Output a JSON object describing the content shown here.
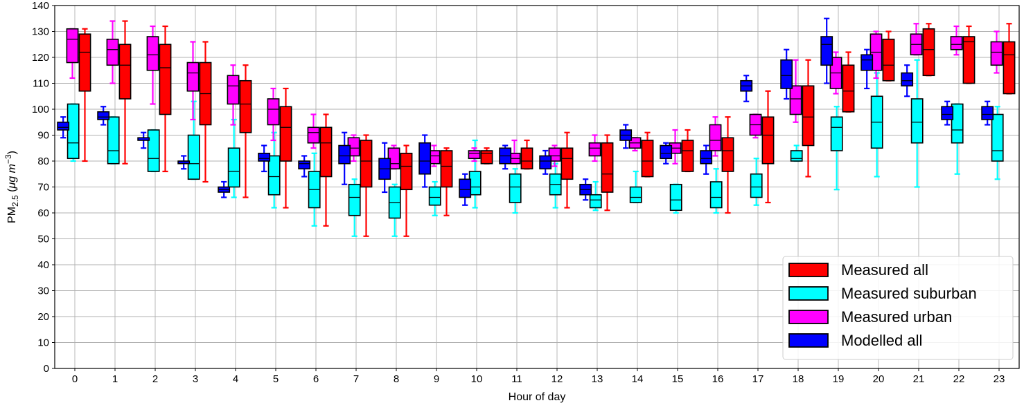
{
  "chart_data": {
    "type": "box",
    "xlabel": "Hour of day",
    "ylabel_main": "PM",
    "ylabel_sub": "2.5",
    "ylabel_unit_open": " (",
    "ylabel_unit_mu": "μg m",
    "ylabel_unit_exp": "−3",
    "ylabel_unit_close": ")",
    "ylim": [
      0,
      140
    ],
    "yticks": [
      0,
      10,
      20,
      30,
      40,
      50,
      60,
      70,
      80,
      90,
      100,
      110,
      120,
      130,
      140
    ],
    "categories": [
      "0",
      "1",
      "2",
      "3",
      "4",
      "5",
      "6",
      "7",
      "8",
      "9",
      "10",
      "11",
      "12",
      "13",
      "14",
      "15",
      "16",
      "17",
      "18",
      "19",
      "20",
      "21",
      "22",
      "23"
    ],
    "grid": true,
    "legend_position": "lower-right",
    "series": [
      {
        "name": "Measured all",
        "color": "#ff0000",
        "offset": 0.25,
        "stats": [
          [
            80,
            107,
            122,
            129,
            131
          ],
          [
            79,
            104,
            117,
            125,
            134
          ],
          [
            76,
            98,
            116,
            125,
            132
          ],
          [
            72,
            94,
            106,
            118,
            126
          ],
          [
            66,
            91,
            102,
            111,
            117
          ],
          [
            62,
            80,
            93,
            101,
            108
          ],
          [
            55,
            74,
            87,
            93,
            98
          ],
          [
            51,
            70,
            80,
            88,
            90
          ],
          [
            51,
            69,
            78,
            83,
            86
          ],
          [
            59,
            70,
            78,
            84,
            85
          ],
          [
            79,
            79,
            83,
            84,
            85
          ],
          [
            77,
            77,
            80,
            85,
            88
          ],
          [
            62,
            73,
            81,
            85,
            91
          ],
          [
            61,
            68,
            75,
            87,
            90
          ],
          [
            74,
            74,
            80,
            88,
            91
          ],
          [
            76,
            76,
            84,
            88,
            92
          ],
          [
            60,
            76,
            84,
            89,
            97
          ],
          [
            64,
            79,
            90,
            97,
            107
          ],
          [
            74,
            86,
            97,
            109,
            119
          ],
          [
            99,
            99,
            107,
            117,
            122
          ],
          [
            111,
            111,
            117,
            127,
            130
          ],
          [
            113,
            113,
            123,
            131,
            133
          ],
          [
            110,
            110,
            126,
            128,
            132
          ],
          [
            106,
            106,
            121,
            126,
            133
          ]
        ]
      },
      {
        "name": "Measured suburban",
        "color": "#00ffff",
        "offset": -0.04,
        "stats": [
          [
            80,
            81,
            87,
            102,
            102
          ],
          [
            79,
            79,
            84,
            97,
            97
          ],
          [
            76,
            76,
            81,
            92,
            92
          ],
          [
            73,
            73,
            79,
            90,
            103
          ],
          [
            66,
            70,
            76,
            85,
            96
          ],
          [
            62,
            67,
            74,
            82,
            91
          ],
          [
            55,
            62,
            69,
            76,
            83
          ],
          [
            51,
            59,
            66,
            71,
            73
          ],
          [
            51,
            58,
            64,
            70,
            71
          ],
          [
            59,
            63,
            66,
            70,
            72
          ],
          [
            62,
            67,
            70,
            76,
            88
          ],
          [
            60,
            64,
            70,
            75,
            77
          ],
          [
            62,
            67,
            71,
            75,
            79
          ],
          [
            61,
            62,
            65,
            67,
            72
          ],
          [
            64,
            64,
            66,
            70,
            76
          ],
          [
            60,
            61,
            65,
            71,
            71
          ],
          [
            60,
            62,
            66,
            72,
            77
          ],
          [
            63,
            66,
            70,
            75,
            81
          ],
          [
            80,
            80,
            81,
            84,
            86
          ],
          [
            69,
            84,
            93,
            97,
            101
          ],
          [
            74,
            85,
            95,
            105,
            114
          ],
          [
            70,
            87,
            95,
            104,
            119
          ],
          [
            75,
            87,
            92,
            102,
            102
          ],
          [
            73,
            80,
            84,
            98,
            101
          ]
        ]
      },
      {
        "name": "Measured urban",
        "color": "#ff00ff",
        "offset": -0.06,
        "stats": [
          [
            112,
            118,
            127,
            131,
            131
          ],
          [
            110,
            117,
            123,
            127,
            134
          ],
          [
            102,
            115,
            121,
            128,
            132
          ],
          [
            96,
            107,
            114,
            118,
            126
          ],
          [
            94,
            102,
            109,
            113,
            117
          ],
          [
            88,
            94,
            100,
            104,
            108
          ],
          [
            85,
            87,
            91,
            93,
            98
          ],
          [
            80,
            82,
            85,
            89,
            90
          ],
          [
            77,
            77,
            79,
            85,
            86
          ],
          [
            78,
            79,
            82,
            84,
            86
          ],
          [
            80,
            81,
            83,
            84,
            85
          ],
          [
            79,
            79,
            81,
            83,
            88
          ],
          [
            78,
            80,
            82,
            85,
            86
          ],
          [
            80,
            82,
            85,
            87,
            90
          ],
          [
            84,
            85,
            87,
            89,
            89
          ],
          [
            79,
            83,
            85,
            87,
            92
          ],
          [
            82,
            84,
            88,
            94,
            97
          ],
          [
            89,
            90,
            94,
            98,
            98
          ],
          [
            95,
            98,
            104,
            109,
            119
          ],
          [
            106,
            108,
            114,
            120,
            122
          ],
          [
            112,
            115,
            122,
            129,
            130
          ],
          [
            121,
            121,
            125,
            129,
            133
          ],
          [
            121,
            123,
            125,
            128,
            132
          ],
          [
            114,
            117,
            122,
            126,
            130
          ]
        ]
      },
      {
        "name": "Modelled all",
        "color": "#0000ff",
        "offset": -0.29,
        "stats": [
          [
            89,
            92,
            93,
            95,
            97
          ],
          [
            94,
            96,
            97,
            99,
            101
          ],
          [
            85,
            88,
            89,
            89,
            91
          ],
          [
            77,
            79,
            80,
            80,
            82
          ],
          [
            66,
            68,
            69,
            70,
            72
          ],
          [
            76,
            80,
            81,
            83,
            86
          ],
          [
            74,
            77,
            79,
            80,
            82
          ],
          [
            71,
            79,
            82,
            86,
            91
          ],
          [
            68,
            73,
            77,
            81,
            87
          ],
          [
            70,
            75,
            80,
            87,
            90
          ],
          [
            63,
            66,
            69,
            73,
            75
          ],
          [
            77,
            79,
            82,
            85,
            86
          ],
          [
            75,
            77,
            80,
            82,
            84
          ],
          [
            65,
            67,
            69,
            71,
            73
          ],
          [
            85,
            88,
            90,
            92,
            94
          ],
          [
            79,
            81,
            83,
            86,
            87
          ],
          [
            75,
            79,
            81,
            84,
            86
          ],
          [
            103,
            107,
            109,
            111,
            113
          ],
          [
            104,
            108,
            113,
            119,
            123
          ],
          [
            110,
            117,
            125,
            128,
            135
          ],
          [
            108,
            115,
            119,
            121,
            123
          ],
          [
            105,
            109,
            111,
            114,
            117
          ],
          [
            94,
            96,
            98,
            101,
            103
          ],
          [
            94,
            96,
            98,
            101,
            103
          ]
        ]
      }
    ]
  }
}
